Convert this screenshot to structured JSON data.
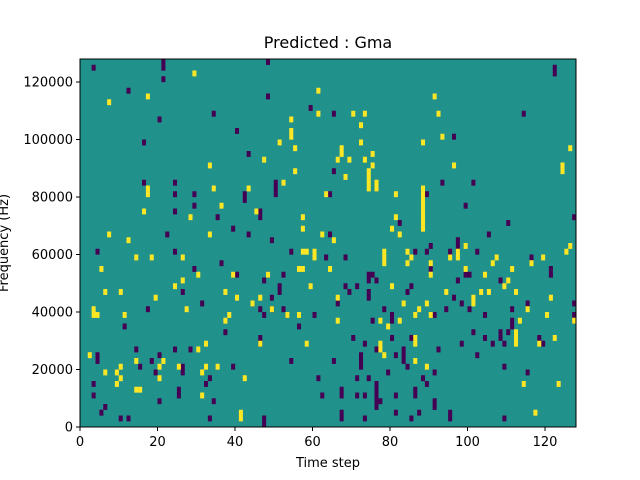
{
  "chart_data": {
    "type": "heatmap",
    "title": "Predicted : Gma",
    "xlabel": "Time step",
    "ylabel": "Frequency (Hz)",
    "xlim": [
      0,
      128
    ],
    "ylim": [
      0,
      128000
    ],
    "xticks": [
      0,
      20,
      40,
      60,
      80,
      100,
      120
    ],
    "yticks": [
      0,
      20000,
      40000,
      60000,
      80000,
      100000,
      120000
    ],
    "n_time_steps": 128,
    "n_freq_bins": 64,
    "legend": "none",
    "grid": false,
    "colors": {
      "background_value": "#21918c",
      "low_value": "#440154",
      "high_value": "#fde725"
    },
    "cells": {
      "low": [
        [
          3,
          62
        ],
        [
          3,
          7
        ],
        [
          3,
          5
        ],
        [
          4,
          30
        ],
        [
          4,
          12
        ],
        [
          4,
          11
        ],
        [
          5,
          2
        ],
        [
          6,
          3
        ],
        [
          10,
          1
        ],
        [
          11,
          17
        ],
        [
          12,
          1
        ],
        [
          12,
          58
        ],
        [
          14,
          13
        ],
        [
          15,
          10
        ],
        [
          16,
          49
        ],
        [
          16,
          42
        ],
        [
          17,
          20
        ],
        [
          18,
          11
        ],
        [
          19,
          9
        ],
        [
          20,
          53
        ],
        [
          20,
          12
        ],
        [
          20,
          4
        ],
        [
          21,
          60
        ],
        [
          21,
          63
        ],
        [
          21,
          62
        ],
        [
          22,
          33
        ],
        [
          24,
          37
        ],
        [
          24,
          40
        ],
        [
          24,
          42
        ],
        [
          24,
          13
        ],
        [
          24,
          30
        ],
        [
          25,
          6
        ],
        [
          25,
          5
        ],
        [
          26,
          23
        ],
        [
          26,
          9
        ],
        [
          26,
          10
        ],
        [
          28,
          13
        ],
        [
          29,
          27
        ],
        [
          29,
          38
        ],
        [
          29,
          40
        ],
        [
          31,
          21
        ],
        [
          32,
          7
        ],
        [
          33,
          1
        ],
        [
          33,
          8
        ],
        [
          34,
          54
        ],
        [
          34,
          4
        ],
        [
          35,
          36
        ],
        [
          36,
          28
        ],
        [
          37,
          16
        ],
        [
          39,
          34
        ],
        [
          39,
          10
        ],
        [
          40,
          51
        ],
        [
          40,
          26
        ],
        [
          42,
          39
        ],
        [
          42,
          40
        ],
        [
          43,
          47
        ],
        [
          43,
          33
        ],
        [
          44,
          21
        ],
        [
          46,
          36
        ],
        [
          46,
          37
        ],
        [
          46,
          20
        ],
        [
          46,
          15
        ],
        [
          46,
          14
        ],
        [
          47,
          19
        ],
        [
          47,
          25
        ],
        [
          47,
          0
        ],
        [
          47,
          1
        ],
        [
          48,
          57
        ],
        [
          48,
          63
        ],
        [
          48,
          26
        ],
        [
          49,
          20
        ],
        [
          49,
          32
        ],
        [
          49,
          22
        ],
        [
          50,
          42
        ],
        [
          50,
          41
        ],
        [
          50,
          40
        ],
        [
          51,
          24
        ],
        [
          51,
          23
        ],
        [
          52,
          26
        ],
        [
          52,
          20
        ],
        [
          53,
          19
        ],
        [
          54,
          30
        ],
        [
          54,
          11
        ],
        [
          56,
          17
        ],
        [
          59,
          55
        ],
        [
          60,
          19
        ],
        [
          61,
          8
        ],
        [
          62,
          5
        ],
        [
          63,
          29
        ],
        [
          64,
          40
        ],
        [
          64,
          33
        ],
        [
          65,
          54
        ],
        [
          65,
          44
        ],
        [
          65,
          11
        ],
        [
          66,
          21
        ],
        [
          67,
          6
        ],
        [
          67,
          5
        ],
        [
          67,
          1
        ],
        [
          67,
          2
        ],
        [
          68,
          29
        ],
        [
          68,
          24
        ],
        [
          69,
          23
        ],
        [
          70,
          15
        ],
        [
          71,
          24
        ],
        [
          71,
          8
        ],
        [
          71,
          5
        ],
        [
          72,
          10
        ],
        [
          72,
          12
        ],
        [
          72,
          11
        ],
        [
          73,
          1
        ],
        [
          73,
          5
        ],
        [
          73,
          14
        ],
        [
          74,
          8
        ],
        [
          74,
          22
        ],
        [
          74,
          23
        ],
        [
          74,
          25
        ],
        [
          74,
          26
        ],
        [
          75,
          26
        ],
        [
          75,
          18
        ],
        [
          76,
          5
        ],
        [
          76,
          6
        ],
        [
          76,
          7
        ],
        [
          76,
          3
        ],
        [
          76,
          4
        ],
        [
          76,
          25
        ],
        [
          76,
          13
        ],
        [
          76,
          41
        ],
        [
          77,
          4
        ],
        [
          78,
          20
        ],
        [
          79,
          9
        ],
        [
          80,
          18
        ],
        [
          80,
          15
        ],
        [
          80,
          19
        ],
        [
          80,
          15
        ],
        [
          81,
          2
        ],
        [
          81,
          5
        ],
        [
          81,
          12
        ],
        [
          82,
          35
        ],
        [
          83,
          11
        ],
        [
          83,
          12
        ],
        [
          83,
          13
        ],
        [
          84,
          23
        ],
        [
          84,
          10
        ],
        [
          85,
          1
        ],
        [
          85,
          24
        ],
        [
          85,
          15
        ],
        [
          86,
          30
        ],
        [
          86,
          5
        ],
        [
          86,
          6
        ],
        [
          87,
          2
        ],
        [
          88,
          8
        ],
        [
          89,
          40
        ],
        [
          89,
          7
        ],
        [
          89,
          30
        ],
        [
          90,
          31
        ],
        [
          90,
          27
        ],
        [
          91,
          19
        ],
        [
          91,
          9
        ],
        [
          91,
          3
        ],
        [
          91,
          4
        ],
        [
          92,
          13
        ],
        [
          93,
          42
        ],
        [
          94,
          20
        ],
        [
          95,
          30
        ],
        [
          95,
          1
        ],
        [
          95,
          2
        ],
        [
          96,
          50
        ],
        [
          96,
          22
        ],
        [
          97,
          30
        ],
        [
          97,
          25
        ],
        [
          97,
          31
        ],
        [
          97,
          32
        ],
        [
          98,
          21
        ],
        [
          98,
          14
        ],
        [
          99,
          26
        ],
        [
          99,
          38
        ],
        [
          100,
          20
        ],
        [
          100,
          26
        ],
        [
          101,
          16
        ],
        [
          101,
          42
        ],
        [
          102,
          30
        ],
        [
          102,
          12
        ],
        [
          104,
          15
        ],
        [
          104,
          19
        ],
        [
          105,
          33
        ],
        [
          106,
          14
        ],
        [
          108,
          25
        ],
        [
          108,
          16
        ],
        [
          108,
          15
        ],
        [
          109,
          1
        ],
        [
          109,
          14
        ],
        [
          109,
          10
        ],
        [
          110,
          35
        ],
        [
          110,
          16
        ],
        [
          111,
          20
        ],
        [
          111,
          18
        ],
        [
          111,
          17
        ],
        [
          114,
          54
        ],
        [
          115,
          21
        ],
        [
          115,
          9
        ],
        [
          116,
          29
        ],
        [
          118,
          15
        ],
        [
          119,
          14
        ],
        [
          121,
          26
        ],
        [
          121,
          27
        ],
        [
          122,
          61
        ],
        [
          122,
          62
        ],
        [
          127,
          19
        ],
        [
          127,
          18
        ],
        [
          127,
          21
        ],
        [
          127,
          36
        ]
      ],
      "high": [
        [
          2,
          12
        ],
        [
          3,
          20
        ],
        [
          3,
          19
        ],
        [
          4,
          19
        ],
        [
          5,
          27
        ],
        [
          6,
          9
        ],
        [
          6,
          23
        ],
        [
          7,
          56
        ],
        [
          7,
          33
        ],
        [
          9,
          7
        ],
        [
          9,
          9
        ],
        [
          10,
          8
        ],
        [
          10,
          10
        ],
        [
          10,
          23
        ],
        [
          11,
          19
        ],
        [
          12,
          32
        ],
        [
          14,
          11
        ],
        [
          14,
          6
        ],
        [
          14,
          29
        ],
        [
          15,
          6
        ],
        [
          16,
          37
        ],
        [
          17,
          40
        ],
        [
          17,
          41
        ],
        [
          17,
          57
        ],
        [
          18,
          29
        ],
        [
          19,
          22
        ],
        [
          20,
          8
        ],
        [
          20,
          10
        ],
        [
          21,
          11
        ],
        [
          24,
          24
        ],
        [
          25,
          10
        ],
        [
          26,
          25
        ],
        [
          26,
          29
        ],
        [
          27,
          20
        ],
        [
          28,
          36
        ],
        [
          29,
          61
        ],
        [
          30,
          26
        ],
        [
          30,
          13
        ],
        [
          31,
          5
        ],
        [
          31,
          9
        ],
        [
          32,
          10
        ],
        [
          32,
          14
        ],
        [
          33,
          33
        ],
        [
          33,
          45
        ],
        [
          34,
          41
        ],
        [
          35,
          10
        ],
        [
          36,
          38
        ],
        [
          37,
          18
        ],
        [
          37,
          23
        ],
        [
          38,
          19
        ],
        [
          39,
          26
        ],
        [
          40,
          22
        ],
        [
          41,
          1
        ],
        [
          41,
          2
        ],
        [
          42,
          8
        ],
        [
          43,
          41
        ],
        [
          44,
          21
        ],
        [
          45,
          37
        ],
        [
          46,
          14
        ],
        [
          46,
          22
        ],
        [
          47,
          46
        ],
        [
          48,
          26
        ],
        [
          49,
          20
        ],
        [
          51,
          49
        ],
        [
          52,
          42
        ],
        [
          53,
          19
        ],
        [
          54,
          50
        ],
        [
          54,
          51
        ],
        [
          54,
          53
        ],
        [
          55,
          44
        ],
        [
          55,
          48
        ],
        [
          56,
          19
        ],
        [
          56,
          27
        ],
        [
          57,
          27
        ],
        [
          57,
          30
        ],
        [
          57,
          34
        ],
        [
          57,
          36
        ],
        [
          58,
          14
        ],
        [
          58,
          30
        ],
        [
          59,
          24
        ],
        [
          60,
          29
        ],
        [
          60,
          30
        ],
        [
          61,
          54
        ],
        [
          61,
          58
        ],
        [
          62,
          33
        ],
        [
          63,
          40
        ],
        [
          64,
          27
        ],
        [
          65,
          32
        ],
        [
          66,
          18
        ],
        [
          66,
          22
        ],
        [
          66,
          46
        ],
        [
          67,
          47
        ],
        [
          67,
          48
        ],
        [
          68,
          43
        ],
        [
          69,
          46
        ],
        [
          70,
          54
        ],
        [
          72,
          49
        ],
        [
          72,
          52
        ],
        [
          73,
          46
        ],
        [
          73,
          54
        ],
        [
          74,
          41
        ],
        [
          74,
          42
        ],
        [
          74,
          43
        ],
        [
          74,
          44
        ],
        [
          75,
          45
        ],
        [
          75,
          47
        ],
        [
          76,
          41
        ],
        [
          76,
          42
        ],
        [
          77,
          18
        ],
        [
          77,
          13
        ],
        [
          77,
          14
        ],
        [
          78,
          12
        ],
        [
          78,
          28
        ],
        [
          78,
          29
        ],
        [
          78,
          30
        ],
        [
          79,
          17
        ],
        [
          80,
          24
        ],
        [
          80,
          34
        ],
        [
          81,
          36
        ],
        [
          81,
          40
        ],
        [
          82,
          33
        ],
        [
          82,
          18
        ],
        [
          83,
          21
        ],
        [
          84,
          28
        ],
        [
          84,
          30
        ],
        [
          85,
          29
        ],
        [
          86,
          11
        ],
        [
          86,
          15
        ],
        [
          86,
          14
        ],
        [
          86,
          19
        ],
        [
          87,
          20
        ],
        [
          88,
          34
        ],
        [
          88,
          35
        ],
        [
          88,
          36
        ],
        [
          88,
          37
        ],
        [
          88,
          38
        ],
        [
          88,
          39
        ],
        [
          88,
          40
        ],
        [
          88,
          41
        ],
        [
          88,
          49
        ],
        [
          89,
          21
        ],
        [
          89,
          10
        ],
        [
          90,
          19
        ],
        [
          90,
          26
        ],
        [
          90,
          28
        ],
        [
          91,
          57
        ],
        [
          92,
          54
        ],
        [
          93,
          50
        ],
        [
          94,
          23
        ],
        [
          95,
          29
        ],
        [
          96,
          45
        ],
        [
          97,
          29
        ],
        [
          97,
          30
        ],
        [
          99,
          31
        ],
        [
          99,
          27
        ],
        [
          101,
          21
        ],
        [
          101,
          22
        ],
        [
          103,
          23
        ],
        [
          104,
          26
        ],
        [
          105,
          23
        ],
        [
          106,
          28
        ],
        [
          107,
          29
        ],
        [
          109,
          24
        ],
        [
          110,
          25
        ],
        [
          111,
          27
        ],
        [
          112,
          14
        ],
        [
          112,
          15
        ],
        [
          112,
          16
        ],
        [
          112,
          23
        ],
        [
          113,
          18
        ],
        [
          114,
          7
        ],
        [
          115,
          20
        ],
        [
          116,
          28
        ],
        [
          117,
          2
        ],
        [
          118,
          14
        ],
        [
          119,
          29
        ],
        [
          120,
          19
        ],
        [
          121,
          22
        ],
        [
          122,
          15
        ],
        [
          123,
          7
        ],
        [
          124,
          44
        ],
        [
          124,
          45
        ],
        [
          125,
          30
        ],
        [
          126,
          31
        ],
        [
          126,
          48
        ],
        [
          127,
          18
        ]
      ]
    }
  }
}
